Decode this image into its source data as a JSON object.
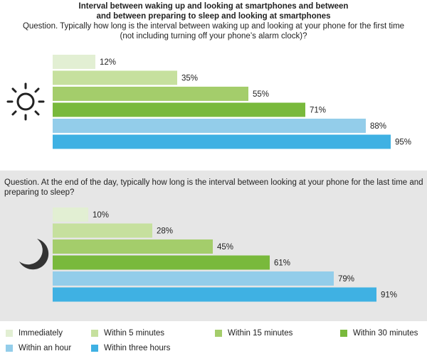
{
  "title_line1": "Interval between waking up and looking at smartphones and between",
  "title_line2": "and between preparing to sleep and looking at smartphones",
  "question1_line1": "Question. Typically how long is the interval between waking up and looking at your phone for the first time",
  "question1_line2": "(not including turning off your phone’s alarm clock)?",
  "question2": "Question. At the end of the day, typically how long is the interval between looking at your phone for the last time and preparing to sleep?",
  "icons": {
    "top": "sun-icon",
    "bottom": "moon-icon"
  },
  "colors": [
    "#e2efd3",
    "#c6e09e",
    "#a4cd6b",
    "#79b93c",
    "#93cdea",
    "#3fb1e3"
  ],
  "chart_data": [
    {
      "type": "bar",
      "orientation": "horizontal",
      "title": "",
      "categories": [
        "Immediately",
        "Within 5 minutes",
        "Within 15 minutes",
        "Within 30 minutes",
        "Within an hour",
        "Within three hours"
      ],
      "values": [
        12,
        35,
        55,
        71,
        88,
        95
      ],
      "value_labels": [
        "12%",
        "35%",
        "55%",
        "71%",
        "88%",
        "95%"
      ],
      "unit": "%",
      "xlim": [
        0,
        100
      ]
    },
    {
      "type": "bar",
      "orientation": "horizontal",
      "title": "",
      "categories": [
        "Immediately",
        "Within 5 minutes",
        "Within 15 minutes",
        "Within 30 minutes",
        "Within an hour",
        "Within three hours"
      ],
      "values": [
        10,
        28,
        45,
        61,
        79,
        91
      ],
      "value_labels": [
        "10%",
        "28%",
        "45%",
        "61%",
        "79%",
        "91%"
      ],
      "unit": "%",
      "xlim": [
        0,
        100
      ]
    }
  ],
  "legend": {
    "placement": "bottom",
    "items": [
      "Immediately",
      "Within 5 minutes",
      "Within 15 minutes",
      "Within 30 minutes",
      "Within an hour",
      "Within three hours"
    ]
  }
}
